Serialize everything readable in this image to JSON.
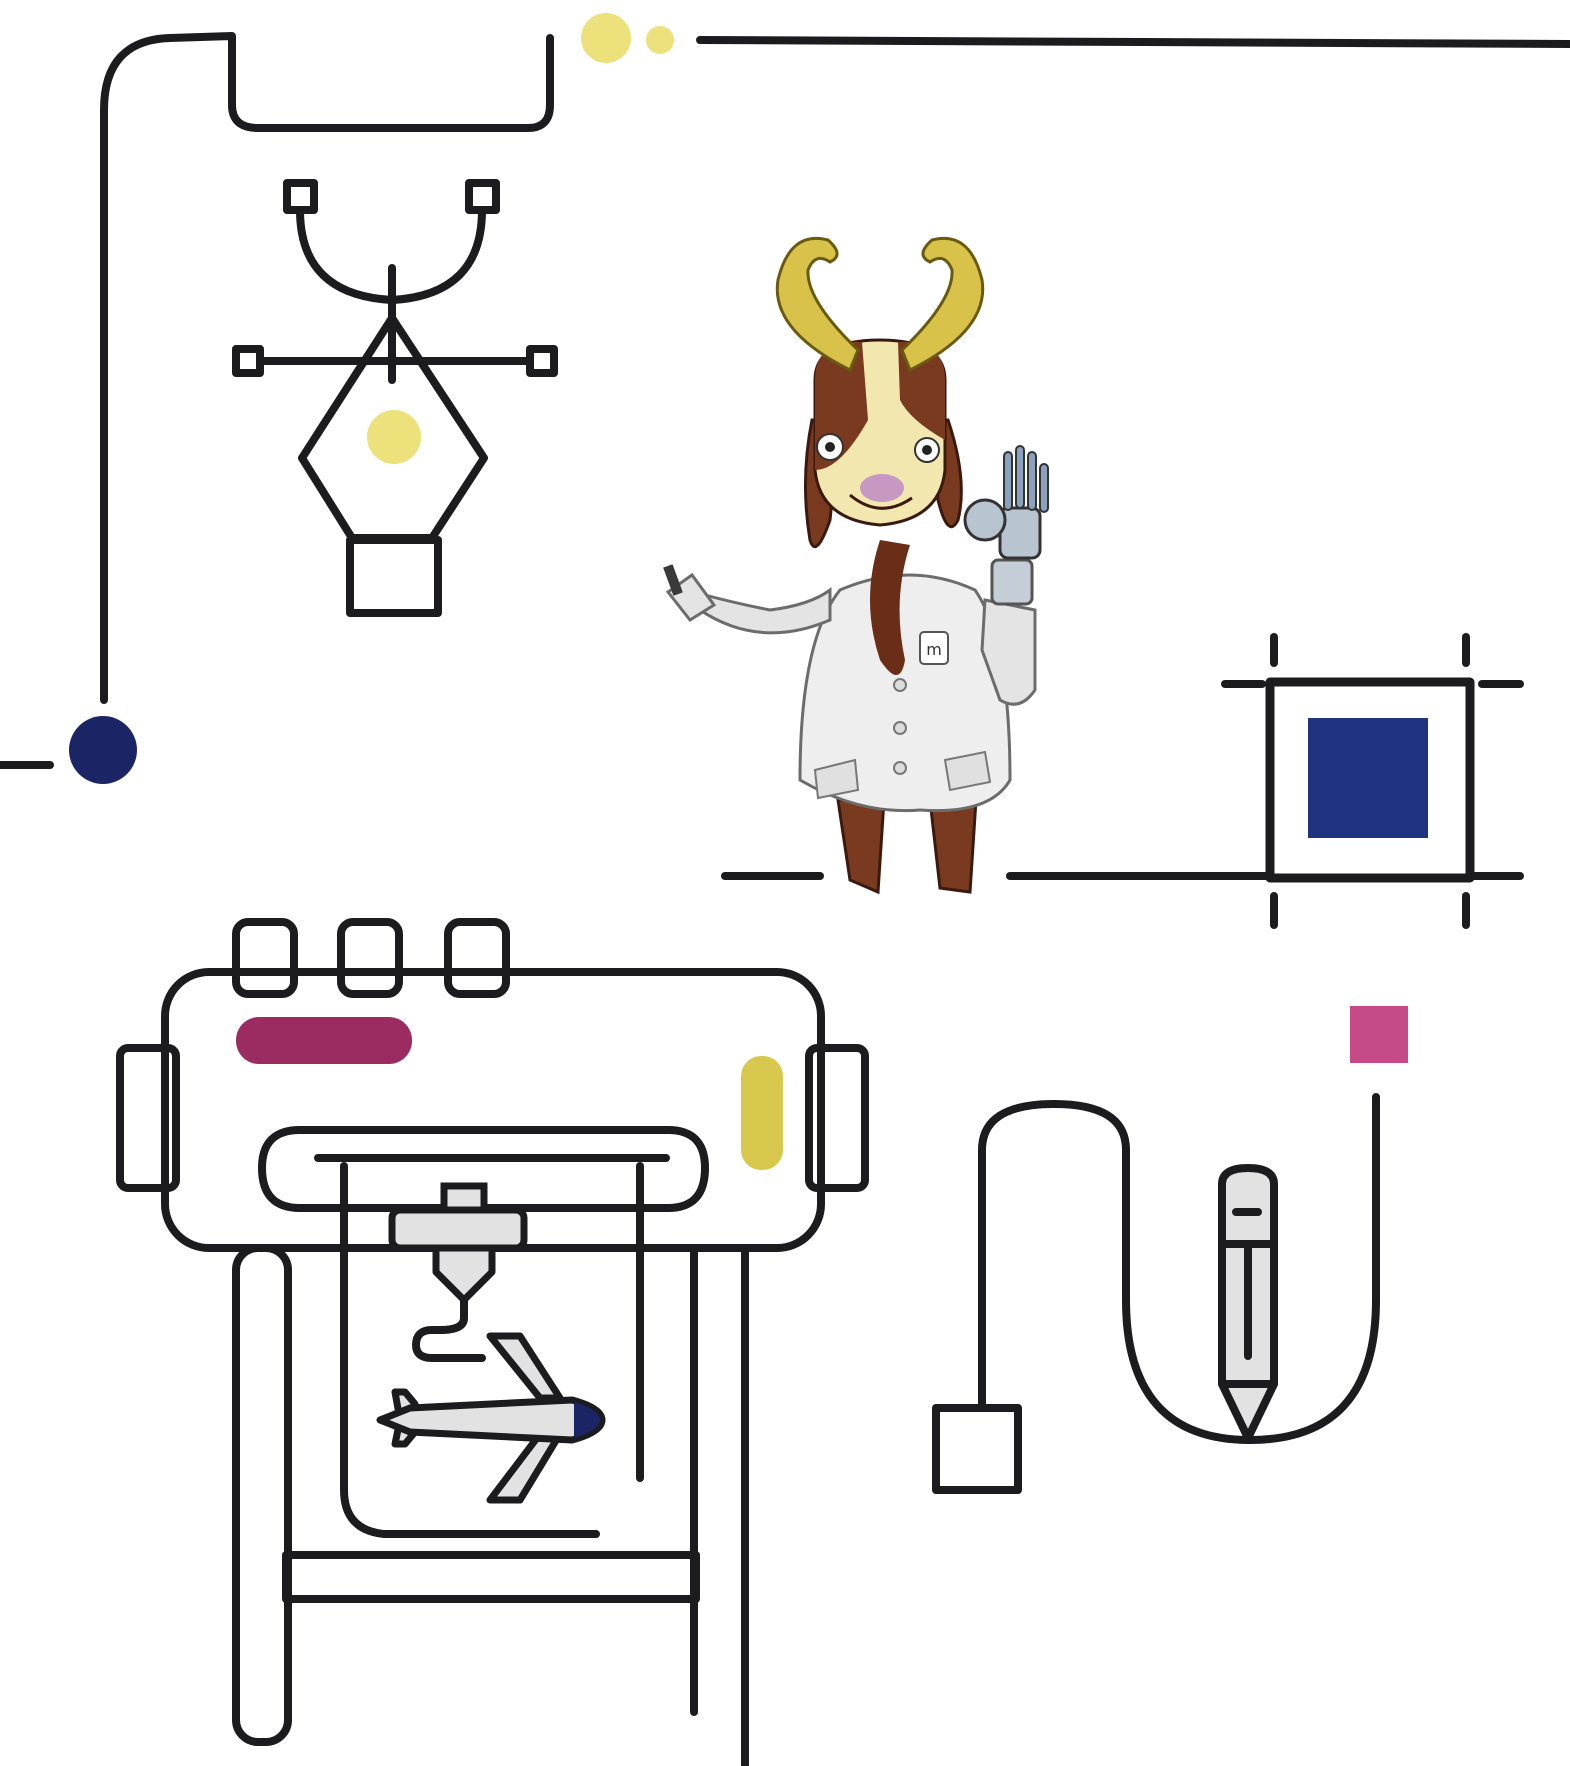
{
  "colors": {
    "line": "#1c1c1e",
    "yellow": "#ece17a",
    "navy": "#1b2566",
    "blue": "#1f3380",
    "magenta": "#9a2c62",
    "pink": "#c64a86",
    "mustard": "#d9c84e",
    "light_gray": "#e2e2e2",
    "goat_brown": "#7a3a20",
    "goat_cream": "#f3e7b0",
    "horn_gold": "#d8c24a",
    "coat_white": "#eeeeee"
  },
  "illustrations": [
    {
      "name": "pen-tool-icon"
    },
    {
      "name": "crop-frame-icon"
    },
    {
      "name": "plotter-printer-icon"
    },
    {
      "name": "airplane-icon"
    },
    {
      "name": "3d-print-nozzle-icon"
    },
    {
      "name": "pencil-icon"
    },
    {
      "name": "goat-mascot"
    }
  ],
  "mascot": {
    "badge_text": "m",
    "has_robot_hand": true,
    "coat": "lab-coat"
  }
}
